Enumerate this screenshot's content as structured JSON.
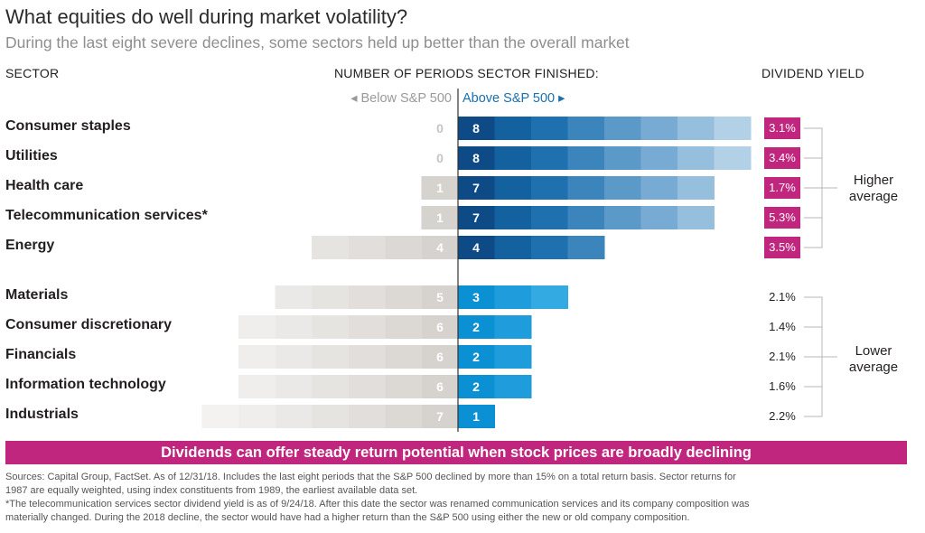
{
  "title": "What equities do well during market volatility?",
  "subtitle": "During the last eight severe declines, some sectors held up better than the overall market",
  "headers": {
    "sector": "SECTOR",
    "periods": "NUMBER OF PERIODS SECTOR FINISHED:",
    "dividend": "DIVIDEND YIELD",
    "below": "◂ Below S&P 500",
    "above": "Above S&P 500 ▸"
  },
  "groups": {
    "higher": "Higher average",
    "lower": "Lower average"
  },
  "banner": "Dividends can offer steady return potential when stock prices are broadly declining",
  "notes": [
    "Sources: Capital Group, FactSet. As of 12/31/18. Includes the last eight periods that the S&P 500 declined by more than 15% on a total return basis. Sector returns for",
    "1987 are equally weighted, using index constituents from 1989, the earliest available data set.",
    "*The telecommunication services sector dividend yield is as of 9/24/18. After this date the sector was renamed communication services and its company composition was",
    "materially changed. During the 2018 decline, the sector would have had a higher return than the S&P 500 using either the new or old company composition."
  ],
  "colors": {
    "higher_yield": "#c0267d",
    "banner": "#c0267d",
    "above_dark": "#0d4a86",
    "above_bright": "#0b90d3",
    "below": "#d6d2ce"
  },
  "chart_data": {
    "type": "bar",
    "title": "What equities do well during market volatility?",
    "xlabel": "NUMBER OF PERIODS SECTOR FINISHED:",
    "total_periods": 8,
    "categories": [
      "Consumer staples",
      "Utilities",
      "Health care",
      "Telecommunication services*",
      "Energy",
      "Materials",
      "Consumer discretionary",
      "Financials",
      "Information technology",
      "Industrials"
    ],
    "series": [
      {
        "name": "Below S&P 500",
        "values": [
          0,
          0,
          1,
          1,
          4,
          5,
          6,
          6,
          6,
          7
        ]
      },
      {
        "name": "Above S&P 500",
        "values": [
          8,
          8,
          7,
          7,
          4,
          3,
          2,
          2,
          2,
          1
        ]
      }
    ],
    "dividend_yield": [
      "3.1%",
      "3.4%",
      "1.7%",
      "5.3%",
      "3.5%",
      "2.1%",
      "1.4%",
      "2.1%",
      "1.6%",
      "2.2%"
    ],
    "yield_group": [
      "higher",
      "higher",
      "higher",
      "higher",
      "higher",
      "lower",
      "lower",
      "lower",
      "lower",
      "lower"
    ]
  }
}
